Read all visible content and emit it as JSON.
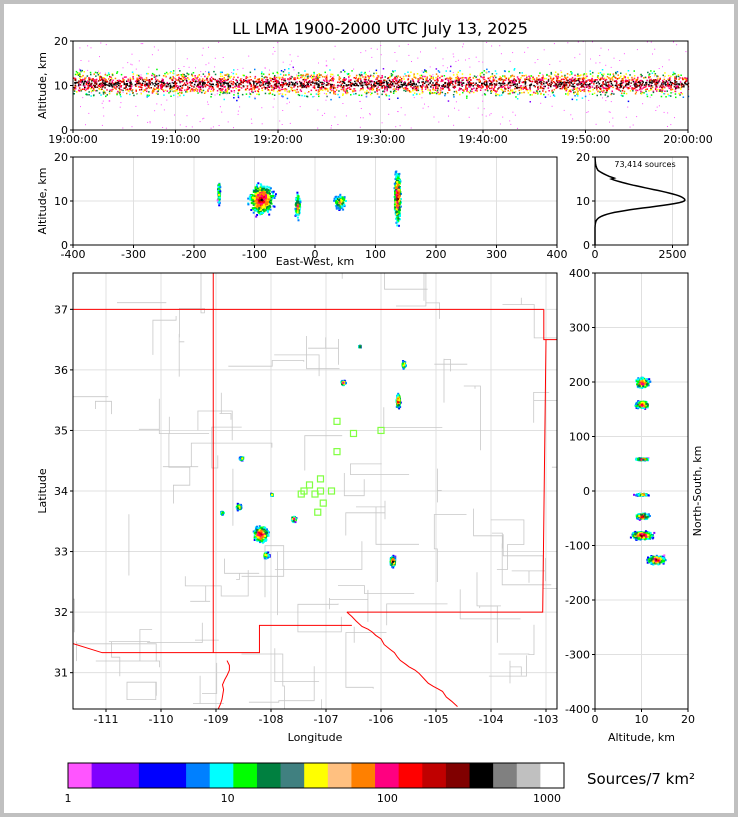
{
  "chart_data": [
    {
      "type": "scatter",
      "panel": "time-altitude",
      "title": "LL LMA 1900-2000 UTC July 13, 2025",
      "ylabel": "Altitude, km",
      "ylim": [
        0,
        20
      ],
      "y_ticks": [
        0,
        10,
        20
      ],
      "x_tick_labels": [
        "19:00:00",
        "19:10:00",
        "19:20:00",
        "19:30:00",
        "19:40:00",
        "19:50:00",
        "20:00:00"
      ],
      "band_center_km": 10.5,
      "band_spread_km": 4.5,
      "grid": true
    },
    {
      "type": "scatter",
      "panel": "east-west-altitude",
      "xlabel": "East-West, km",
      "ylabel": "Altitude, km",
      "xlim": [
        -400,
        400
      ],
      "ylim": [
        0,
        20
      ],
      "x_ticks": [
        -400,
        -300,
        -200,
        -100,
        0,
        100,
        200,
        300,
        400
      ],
      "y_ticks": [
        0,
        10,
        20
      ],
      "clusters": [
        {
          "x": -160,
          "y": 12,
          "w": 6,
          "h": 8,
          "density": 20
        },
        {
          "x": -90,
          "y": 10.5,
          "w": 55,
          "h": 9,
          "density": 600
        },
        {
          "x": -30,
          "y": 9,
          "w": 12,
          "h": 8,
          "density": 80
        },
        {
          "x": 40,
          "y": 10,
          "w": 30,
          "h": 5,
          "density": 50
        },
        {
          "x": 135,
          "y": 11,
          "w": 14,
          "h": 16,
          "density": 500
        }
      ],
      "grid": true
    },
    {
      "type": "line",
      "panel": "altitude-histogram",
      "annotation": "73,414 sources",
      "xlim": [
        0,
        3000
      ],
      "ylim": [
        0,
        20
      ],
      "x_ticks": [
        0,
        2500
      ],
      "y_ticks": [
        0,
        10,
        20
      ],
      "peak_altitude_km": 10.2,
      "peak_count": 2900,
      "grid": true
    },
    {
      "type": "scatter",
      "panel": "plan-view-map",
      "xlabel": "Longitude",
      "ylabel": "Latitude",
      "xlim": [
        -111.6,
        -102.8
      ],
      "ylim": [
        30.4,
        37.6
      ],
      "x_ticks": [
        -111,
        -110,
        -109,
        -108,
        -107,
        -106,
        -105,
        -104,
        -103
      ],
      "y_ticks": [
        31,
        32,
        33,
        34,
        35,
        36,
        37
      ],
      "clusters": [
        {
          "lon": -108.2,
          "lat": 33.3,
          "w": 0.35,
          "h": 0.35,
          "density": 600
        },
        {
          "lon": -108.1,
          "lat": 32.95,
          "w": 0.15,
          "h": 0.15,
          "density": 60
        },
        {
          "lon": -108.6,
          "lat": 33.75,
          "w": 0.15,
          "h": 0.15,
          "density": 50
        },
        {
          "lon": -108.9,
          "lat": 33.65,
          "w": 0.1,
          "h": 0.1,
          "density": 20
        },
        {
          "lon": -108.55,
          "lat": 34.55,
          "w": 0.1,
          "h": 0.08,
          "density": 40
        },
        {
          "lon": -108.0,
          "lat": 33.95,
          "w": 0.06,
          "h": 0.06,
          "density": 40
        },
        {
          "lon": -107.6,
          "lat": 33.55,
          "w": 0.12,
          "h": 0.12,
          "density": 200
        },
        {
          "lon": -106.7,
          "lat": 35.8,
          "w": 0.12,
          "h": 0.1,
          "density": 100
        },
        {
          "lon": -105.7,
          "lat": 35.5,
          "w": 0.1,
          "h": 0.3,
          "density": 300
        },
        {
          "lon": -105.6,
          "lat": 36.1,
          "w": 0.1,
          "h": 0.2,
          "density": 50
        },
        {
          "lon": -105.8,
          "lat": 32.85,
          "w": 0.12,
          "h": 0.22,
          "density": 500
        },
        {
          "lon": -106.4,
          "lat": 36.4,
          "w": 0.05,
          "h": 0.05,
          "density": 40
        }
      ],
      "stations": [
        [
          -107.4,
          34.0
        ],
        [
          -107.3,
          34.1
        ],
        [
          -107.1,
          34.2
        ],
        [
          -107.1,
          34.0
        ],
        [
          -107.2,
          33.95
        ],
        [
          -106.9,
          34.0
        ],
        [
          -107.05,
          33.8
        ],
        [
          -107.15,
          33.65
        ],
        [
          -106.8,
          34.65
        ],
        [
          -106.8,
          35.15
        ],
        [
          -106.5,
          34.95
        ],
        [
          -106.0,
          35.0
        ],
        [
          -107.45,
          33.95
        ]
      ],
      "colors": {
        "boundary": "#ff0000",
        "counties": "#c8c8c8",
        "station": "#80ff40"
      },
      "grid": true
    },
    {
      "type": "scatter",
      "panel": "altitude-north-south",
      "xlabel": "Altitude, km",
      "ylabel": "North-South, km",
      "xlim": [
        0,
        20
      ],
      "ylim": [
        -400,
        400
      ],
      "x_ticks": [
        0,
        10,
        20
      ],
      "y_ticks": [
        -400,
        -300,
        -200,
        -100,
        0,
        100,
        200,
        300,
        400
      ],
      "clusters": [
        {
          "x": 10,
          "y": 200,
          "w": 4,
          "h": 25,
          "density": 300
        },
        {
          "x": 10,
          "y": 160,
          "w": 4,
          "h": 18,
          "density": 300
        },
        {
          "x": 10,
          "y": 60,
          "w": 4,
          "h": 6,
          "density": 150
        },
        {
          "x": 10,
          "y": -5,
          "w": 4,
          "h": 6,
          "density": 80
        },
        {
          "x": 10,
          "y": -45,
          "w": 4,
          "h": 15,
          "density": 300
        },
        {
          "x": 10,
          "y": -80,
          "w": 6,
          "h": 20,
          "density": 600
        },
        {
          "x": 13,
          "y": -125,
          "w": 5,
          "h": 20,
          "density": 600
        }
      ],
      "grid": true
    }
  ],
  "colorbar": {
    "label": "Sources/7 km²",
    "tick_labels": [
      {
        "value": 1,
        "text": "1"
      },
      {
        "value": 10,
        "text": "10"
      },
      {
        "value": 100,
        "text": "100"
      },
      {
        "value": 1000,
        "text": "1000"
      }
    ],
    "colors": [
      "#ff55ff",
      "#8000ff",
      "#8000ff",
      "#0000ff",
      "#0000ff",
      "#0080ff",
      "#00ffff",
      "#00ff00",
      "#008040",
      "#408080",
      "#ffff00",
      "#ffc080",
      "#ff8000",
      "#ff0080",
      "#ff0000",
      "#c00000",
      "#800000",
      "#000000",
      "#808080",
      "#c0c0c0",
      "#ffffff"
    ]
  },
  "density_palette": [
    "#ff55ff",
    "#8000ff",
    "#0000ff",
    "#0080ff",
    "#00ffff",
    "#00ff00",
    "#008040",
    "#ffff00",
    "#ff8000",
    "#ff0080",
    "#ff0000",
    "#800000",
    "#000000"
  ]
}
